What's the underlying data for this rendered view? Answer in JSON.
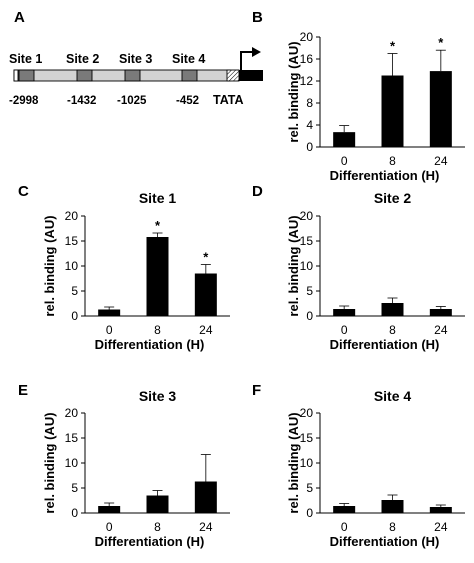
{
  "panel_letters": [
    "A",
    "B",
    "C",
    "D",
    "E",
    "F"
  ],
  "schematic": {
    "sites": [
      "Site 1",
      "Site 2",
      "Site 3",
      "Site 4"
    ],
    "positions": [
      "-2998",
      "-1432",
      "-1025",
      "-452"
    ],
    "tata_label": "TATA"
  },
  "chart_data": [
    {
      "type": "bar",
      "panel": "B",
      "title": "",
      "categories": [
        "0",
        "8",
        "24"
      ],
      "values": [
        2.7,
        13.0,
        13.8
      ],
      "errors": [
        1.2,
        4.0,
        3.8
      ],
      "significant": [
        false,
        true,
        true
      ],
      "significance_label": "*",
      "xlabel": "Differentiation (H)",
      "ylabel": "rel. binding (AU)",
      "ylim": [
        0,
        20
      ],
      "yticks": [
        0,
        4,
        8,
        12,
        16,
        20
      ]
    },
    {
      "type": "bar",
      "panel": "C",
      "title": "Site 1",
      "categories": [
        "0",
        "8",
        "24"
      ],
      "values": [
        1.3,
        15.8,
        8.5
      ],
      "errors": [
        0.5,
        0.8,
        1.8
      ],
      "significant": [
        false,
        true,
        true
      ],
      "significance_label": "*",
      "xlabel": "Differentiation (H)",
      "ylabel": "rel. binding (AU)",
      "ylim": [
        0,
        20
      ],
      "yticks": [
        0,
        5,
        10,
        15,
        20
      ]
    },
    {
      "type": "bar",
      "panel": "D",
      "title": "Site 2",
      "categories": [
        "0",
        "8",
        "24"
      ],
      "values": [
        1.4,
        2.6,
        1.4
      ],
      "errors": [
        0.6,
        1.0,
        0.5
      ],
      "significant": [
        false,
        false,
        false
      ],
      "significance_label": "*",
      "xlabel": "Differentiation (H)",
      "ylabel": "rel. binding (AU)",
      "ylim": [
        0,
        20
      ],
      "yticks": [
        0,
        5,
        10,
        15,
        20
      ]
    },
    {
      "type": "bar",
      "panel": "E",
      "title": "Site 3",
      "categories": [
        "0",
        "8",
        "24"
      ],
      "values": [
        1.4,
        3.5,
        6.3
      ],
      "errors": [
        0.6,
        1.0,
        5.4
      ],
      "significant": [
        false,
        false,
        false
      ],
      "significance_label": "*",
      "xlabel": "Differentiation (H)",
      "ylabel": "rel. binding (AU)",
      "ylim": [
        0,
        20
      ],
      "yticks": [
        0,
        5,
        10,
        15,
        20
      ]
    },
    {
      "type": "bar",
      "panel": "F",
      "title": "Site 4",
      "categories": [
        "0",
        "8",
        "24"
      ],
      "values": [
        1.4,
        2.6,
        1.2
      ],
      "errors": [
        0.5,
        1.0,
        0.4
      ],
      "significant": [
        false,
        false,
        false
      ],
      "significance_label": "*",
      "xlabel": "Differentiation (H)",
      "ylabel": "rel. binding (AU)",
      "ylim": [
        0,
        20
      ],
      "yticks": [
        0,
        5,
        10,
        15,
        20
      ]
    }
  ]
}
